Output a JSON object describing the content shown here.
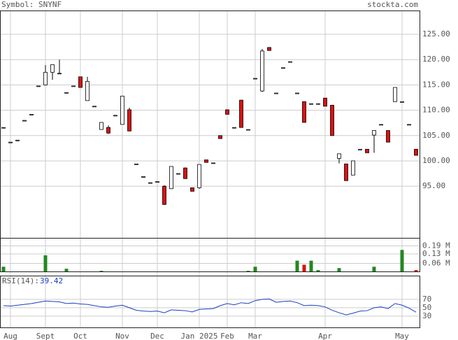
{
  "header": {
    "symbol": "Symbol: SNYNF",
    "site": "stockta.com"
  },
  "chart_data": {
    "type": "candlestick",
    "categories": [
      null,
      "Aug",
      null,
      null,
      null,
      null,
      "Sept",
      null,
      null,
      null,
      null,
      "Oct",
      null,
      null,
      null,
      null,
      null,
      "Nov",
      null,
      null,
      null,
      null,
      "Dec",
      null,
      null,
      null,
      null,
      null,
      "Jan 2025",
      null,
      null,
      null,
      "Feb",
      null,
      null,
      null,
      "Mar",
      null,
      null,
      null,
      null,
      null,
      null,
      null,
      null,
      null,
      "Apr",
      null,
      null,
      null,
      null,
      null,
      null,
      null,
      null,
      null,
      null,
      "May",
      null,
      null
    ],
    "open": [
      106.6,
      103.7,
      104.1,
      108,
      109.2,
      114.8,
      115,
      117.5,
      117.3,
      113.5,
      114.8,
      116.6,
      111.9,
      110.8,
      106.2,
      106.6,
      109,
      107.2,
      110.1,
      99.4,
      96.9,
      95.7,
      95.9,
      95,
      94.5,
      97.5,
      98.6,
      94.7,
      94.7,
      100.2,
      99.6,
      105,
      110.1,
      106.6,
      112,
      106.2,
      116.3,
      113.8,
      122.4,
      113.4,
      118.4,
      119.6,
      113.4,
      111.7,
      111.3,
      111.3,
      112.4,
      111,
      100.5,
      99.4,
      97.2,
      102.3,
      102.3,
      105.1,
      107.2,
      106,
      111.7,
      111.7,
      107.2,
      102.3
    ],
    "high": [
      106.6,
      103.7,
      104.1,
      108,
      109.2,
      114.8,
      118.9,
      119,
      120,
      113.5,
      114.8,
      116.6,
      116.6,
      110.8,
      107.6,
      107,
      109,
      112.8,
      110.5,
      99.4,
      96.9,
      95.7,
      95.9,
      95.2,
      98.9,
      97.5,
      98.7,
      94.7,
      99.3,
      100.2,
      99.6,
      105,
      110.1,
      106.6,
      112,
      106.2,
      116.3,
      122.1,
      122.4,
      113.4,
      118.4,
      119.6,
      113.4,
      111.7,
      111.3,
      111.3,
      112.4,
      111,
      101.4,
      99.4,
      100,
      102.3,
      102.3,
      106,
      107.2,
      106,
      114.5,
      111.7,
      107.2,
      102.3
    ],
    "low": [
      106.6,
      103.7,
      104.1,
      108,
      109.2,
      114.8,
      114.9,
      116,
      117.3,
      113.5,
      114.8,
      114.5,
      111.9,
      110.8,
      106.2,
      105.3,
      109,
      107.2,
      105.9,
      99.4,
      96.9,
      95.7,
      95.9,
      91.3,
      94.5,
      97.5,
      96.5,
      94,
      94.5,
      99.7,
      99.6,
      104.4,
      109.2,
      106.6,
      106.6,
      106.2,
      116.3,
      113.6,
      121.8,
      113.4,
      118.4,
      119.6,
      113.4,
      107.6,
      111.3,
      111.3,
      110.8,
      105,
      99.5,
      96.1,
      97.2,
      102.3,
      101.6,
      101.6,
      107.2,
      103.7,
      111.7,
      111.7,
      107.2,
      101.1
    ],
    "close": [
      106.6,
      103.7,
      104.1,
      108,
      109.2,
      114.8,
      117.5,
      119,
      117.3,
      113.5,
      114.8,
      114.5,
      115.7,
      110.8,
      107.6,
      105.5,
      109,
      112.8,
      105.9,
      99.4,
      96.9,
      95.7,
      95.9,
      91.4,
      98.9,
      97.5,
      96.5,
      94,
      99.3,
      99.7,
      99.6,
      104.4,
      109.2,
      106.6,
      106.6,
      106.2,
      116.3,
      121.7,
      121.8,
      113.4,
      118.4,
      119.6,
      113.4,
      107.6,
      111.3,
      111.3,
      110.8,
      105,
      101.4,
      96.1,
      100,
      102.3,
      101.6,
      106,
      107.2,
      103.7,
      114.5,
      111.7,
      107.2,
      101.1
    ],
    "up_color": "#ffffff",
    "down_color": "#dd1111",
    "ylim": [
      84.8,
      129.7
    ],
    "yticks": [
      {
        "value": 95,
        "label": "95.00"
      },
      {
        "value": 100,
        "label": "100.00"
      },
      {
        "value": 105,
        "label": "105.00"
      },
      {
        "value": 110,
        "label": "110.00"
      },
      {
        "value": 115,
        "label": "115.00"
      },
      {
        "value": 120,
        "label": "120.00"
      },
      {
        "value": 125,
        "label": "125.00"
      }
    ],
    "grid": true,
    "volume": {
      "values": [
        0.035,
        0,
        0,
        0,
        0,
        0,
        0.12,
        0,
        0,
        0.02,
        0,
        0,
        0,
        0,
        0.005,
        0,
        0,
        0,
        0,
        0,
        0,
        0,
        0,
        0,
        0,
        0,
        0,
        0,
        0,
        0,
        0,
        0,
        0,
        0,
        0,
        0.005,
        0.035,
        0,
        0,
        0,
        0,
        0,
        0.08,
        0.05,
        0.08,
        0.01,
        0,
        0,
        0.025,
        0,
        0,
        0,
        0,
        0.035,
        0,
        0,
        0,
        0.16,
        0,
        0.01
      ],
      "up_color": "#228822",
      "down_color": "#dd1111",
      "ylim": [
        0,
        0.25
      ],
      "yticks": [
        {
          "value": 0.06,
          "label": "0.06 M"
        },
        {
          "value": 0.13,
          "label": "0.13 M"
        },
        {
          "value": 0.19,
          "label": "0.19 M"
        }
      ]
    },
    "rsi": {
      "label": "RSI(14):",
      "color": "#1a3fbf",
      "values": [
        55,
        54,
        56,
        58,
        60,
        63,
        66,
        65,
        64,
        60,
        61,
        59,
        58,
        55,
        52,
        51,
        54,
        56,
        50,
        44,
        42,
        41,
        42,
        38,
        45,
        44,
        43,
        40,
        46,
        47,
        48,
        55,
        60,
        57,
        62,
        60,
        67,
        70,
        71,
        63,
        65,
        66,
        62,
        55,
        56,
        55,
        52,
        44,
        38,
        33,
        37,
        42,
        43,
        50,
        52,
        48,
        60,
        56,
        49,
        39.42
      ],
      "ylim": [
        3,
        125
      ],
      "yticks": [
        30,
        50,
        70
      ]
    }
  }
}
